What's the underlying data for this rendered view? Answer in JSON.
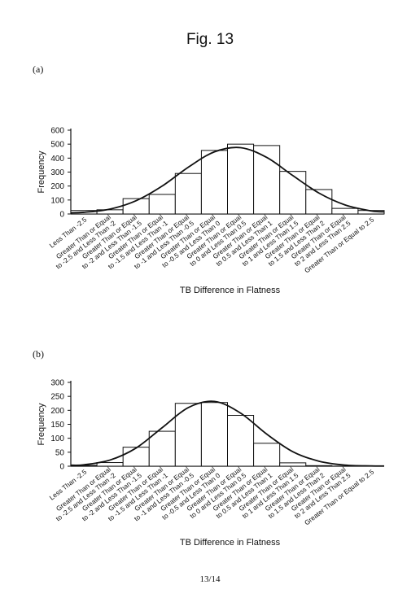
{
  "figure_title": "Fig. 13",
  "page_number": "13/14",
  "categories": [
    "Less Than -2.5",
    "Greater Than or Equal to -2.5 and Less Than -2",
    "Greater Than or Equal to -2 and Less Than -1.5",
    "Greater Than or Equal to -1.5 and Less Than -1",
    "Greater Than or Equal to -1 and Less Than -0.5",
    "Greater Than or Equal to -0.5 and Less Than 0",
    "Greater Than or Equal to 0 and Less Than 0.5",
    "Greater Than or Equal to 0.5 and Less Than 1",
    "Greater Than or Equal to 1 and Less Than 1.5",
    "Greater Than or Equal to 1.5 and Less Than 2",
    "Greater Than or Equal to 2 and Less Than 2.5",
    "Greater Than or Equal to 2.5"
  ],
  "chart_data": [
    {
      "type": "bar",
      "panel": "(a)",
      "label_lines": [
        [
          "Less Than -2.5"
        ],
        [
          "Greater Than or Equal",
          "to -2.5 and Less Than -2"
        ],
        [
          "Greater Than or Equal",
          "to -2 and Less Than -1.5"
        ],
        [
          "Greater Than or Equal",
          "to -1.5 and Less Than -1"
        ],
        [
          "Greater Than or Equal",
          "to -1 and Less Than -0.5"
        ],
        [
          "Greater Than or Equal",
          "to -0.5 and Less Than 0"
        ],
        [
          "Greater Than or Equal",
          "to 0 and Less Than 0.5"
        ],
        [
          "Greater Than or Equal",
          "to 0.5 and Less Than 1"
        ],
        [
          "Greater Than or Equal",
          "to 1 and Less Than 1.5"
        ],
        [
          "Greater Than or Equal",
          "to 1.5 and Less Than 2"
        ],
        [
          "Greater Than or Equal",
          "to 2 and Less Than 2.5"
        ],
        [
          "Greater Than or Equal to 2.5"
        ]
      ],
      "values": [
        25,
        30,
        110,
        140,
        290,
        455,
        500,
        490,
        305,
        175,
        40,
        25
      ],
      "curve": [
        12,
        35,
        95,
        200,
        335,
        445,
        475,
        405,
        275,
        150,
        65,
        22
      ],
      "xlabel": "TB Difference in Flatness",
      "ylabel": "Frequency",
      "ylim": [
        0,
        600
      ],
      "yticks": [
        0,
        100,
        200,
        300,
        400,
        500,
        600
      ],
      "grid": false,
      "legend": "none"
    },
    {
      "type": "bar",
      "panel": "(b)",
      "label_lines": [
        [
          "Less Than -2.5"
        ],
        [
          "Greater Than or Equal",
          "to -2.5 and Less Than -2"
        ],
        [
          "Greater Than or Equal",
          "to -2 and Less Than -1.5"
        ],
        [
          "Greater Than or Equal",
          "to -1.5 and Less Than -1"
        ],
        [
          "Greater Than or Equal",
          "to -1 and Less Than -0.5"
        ],
        [
          "Greater Than or Equal",
          "to -0.5 and Less Than 0"
        ],
        [
          "Greater Than or Equal",
          "to 0 and Less Than 0.5"
        ],
        [
          "Greater Than or Equal",
          "to 0.5 and Less Than 1"
        ],
        [
          "Greater Than or Equal",
          "to 1 and Less Than 1.5"
        ],
        [
          "Greater Than or Equal",
          "to 1.5 and Less Than 2"
        ],
        [
          "Greater Than or Equal",
          "to 2 and Less Than 2.5"
        ],
        [
          "Greater Than or Equal to 2.5"
        ]
      ],
      "values": [
        3,
        13,
        68,
        125,
        225,
        228,
        182,
        82,
        12,
        2,
        0,
        0
      ],
      "curve": [
        5,
        22,
        65,
        138,
        210,
        232,
        190,
        115,
        52,
        18,
        4,
        1
      ],
      "xlabel": "TB Difference in Flatness",
      "ylabel": "Frequency",
      "ylim": [
        0,
        300
      ],
      "yticks": [
        0,
        50,
        100,
        150,
        200,
        250,
        300
      ],
      "grid": false,
      "legend": "none"
    }
  ]
}
